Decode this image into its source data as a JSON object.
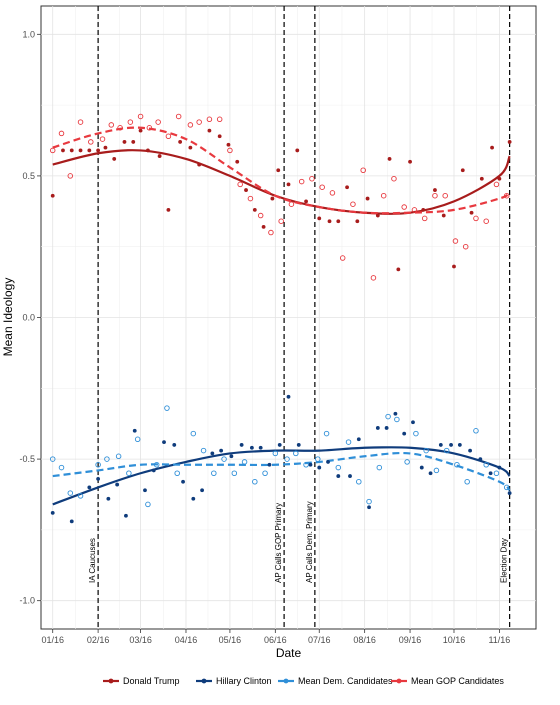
{
  "chart_data": {
    "type": "scatter",
    "xlabel": "Date",
    "ylabel": "Mean Ideology",
    "xlim": [
      "2015-12-24",
      "2016-11-26"
    ],
    "ylim": [
      -1.1,
      1.1
    ],
    "grid": true,
    "legend_position": "bottom",
    "x_ticks": [
      {
        "date": "2016-01-01",
        "label": "01/16"
      },
      {
        "date": "2016-02-01",
        "label": "02/16"
      },
      {
        "date": "2016-03-01",
        "label": "03/16"
      },
      {
        "date": "2016-04-01",
        "label": "04/16"
      },
      {
        "date": "2016-05-01",
        "label": "05/16"
      },
      {
        "date": "2016-06-01",
        "label": "06/16"
      },
      {
        "date": "2016-07-01",
        "label": "07/16"
      },
      {
        "date": "2016-08-01",
        "label": "08/16"
      },
      {
        "date": "2016-09-01",
        "label": "09/16"
      },
      {
        "date": "2016-10-01",
        "label": "10/16"
      },
      {
        "date": "2016-11-01",
        "label": "11/16"
      }
    ],
    "y_ticks": [
      {
        "value": 1.0,
        "label": "1.0"
      },
      {
        "value": 0.5,
        "label": "0.5"
      },
      {
        "value": 0.0,
        "label": "0.0"
      },
      {
        "value": -0.5,
        "label": "-0.5"
      },
      {
        "value": -1.0,
        "label": "-1.0"
      }
    ],
    "events": [
      {
        "date": "2016-02-01",
        "label": "IA Caucuses"
      },
      {
        "date": "2016-06-07",
        "label": "AP Calls GOP Primary"
      },
      {
        "date": "2016-06-28",
        "label": "AP Calls Dem. Primary"
      },
      {
        "date": "2016-11-08",
        "label": "Election Day"
      }
    ],
    "series": [
      {
        "name": "Donald Trump",
        "color": "#a81c1c",
        "marker": "filled",
        "line_style": "solid",
        "points": [
          [
            "2016-01-01",
            0.43
          ],
          [
            "2016-01-08",
            0.59
          ],
          [
            "2016-01-14",
            0.59
          ],
          [
            "2016-01-20",
            0.59
          ],
          [
            "2016-01-26",
            0.59
          ],
          [
            "2016-02-01",
            0.59
          ],
          [
            "2016-02-06",
            0.6
          ],
          [
            "2016-02-12",
            0.56
          ],
          [
            "2016-02-19",
            0.62
          ],
          [
            "2016-02-25",
            0.62
          ],
          [
            "2016-03-01",
            0.66
          ],
          [
            "2016-03-06",
            0.59
          ],
          [
            "2016-03-14",
            0.57
          ],
          [
            "2016-03-20",
            0.38
          ],
          [
            "2016-03-28",
            0.62
          ],
          [
            "2016-04-04",
            0.6
          ],
          [
            "2016-04-10",
            0.54
          ],
          [
            "2016-04-17",
            0.66
          ],
          [
            "2016-04-24",
            0.64
          ],
          [
            "2016-04-30",
            0.61
          ],
          [
            "2016-05-06",
            0.55
          ],
          [
            "2016-05-12",
            0.45
          ],
          [
            "2016-05-18",
            0.38
          ],
          [
            "2016-05-24",
            0.32
          ],
          [
            "2016-05-30",
            0.42
          ],
          [
            "2016-06-03",
            0.52
          ],
          [
            "2016-06-10",
            0.47
          ],
          [
            "2016-06-16",
            0.59
          ],
          [
            "2016-06-22",
            0.41
          ],
          [
            "2016-07-01",
            0.35
          ],
          [
            "2016-07-08",
            0.34
          ],
          [
            "2016-07-14",
            0.34
          ],
          [
            "2016-07-20",
            0.46
          ],
          [
            "2016-07-27",
            0.34
          ],
          [
            "2016-08-03",
            0.42
          ],
          [
            "2016-08-10",
            0.36
          ],
          [
            "2016-08-18",
            0.56
          ],
          [
            "2016-08-24",
            0.17
          ],
          [
            "2016-09-01",
            0.55
          ],
          [
            "2016-09-10",
            0.38
          ],
          [
            "2016-09-18",
            0.45
          ],
          [
            "2016-09-24",
            0.36
          ],
          [
            "2016-10-01",
            0.18
          ],
          [
            "2016-10-07",
            0.52
          ],
          [
            "2016-10-13",
            0.37
          ],
          [
            "2016-10-20",
            0.49
          ],
          [
            "2016-10-27",
            0.6
          ],
          [
            "2016-11-01",
            0.49
          ],
          [
            "2016-11-08",
            0.62
          ]
        ],
        "trend": [
          [
            "2016-01-01",
            0.54
          ],
          [
            "2016-02-01",
            0.58
          ],
          [
            "2016-03-01",
            0.59
          ],
          [
            "2016-04-01",
            0.56
          ],
          [
            "2016-05-01",
            0.5
          ],
          [
            "2016-06-01",
            0.43
          ],
          [
            "2016-07-01",
            0.39
          ],
          [
            "2016-08-01",
            0.37
          ],
          [
            "2016-09-01",
            0.37
          ],
          [
            "2016-10-01",
            0.41
          ],
          [
            "2016-11-01",
            0.5
          ],
          [
            "2016-11-08",
            0.57
          ]
        ]
      },
      {
        "name": "Hillary Clinton",
        "color": "#0f3c7c",
        "marker": "filled",
        "line_style": "solid",
        "points": [
          [
            "2016-01-01",
            -0.69
          ],
          [
            "2016-01-14",
            -0.72
          ],
          [
            "2016-01-26",
            -0.6
          ],
          [
            "2016-02-01",
            -0.57
          ],
          [
            "2016-02-08",
            -0.64
          ],
          [
            "2016-02-14",
            -0.59
          ],
          [
            "2016-02-20",
            -0.7
          ],
          [
            "2016-02-26",
            -0.4
          ],
          [
            "2016-03-04",
            -0.61
          ],
          [
            "2016-03-10",
            -0.54
          ],
          [
            "2016-03-17",
            -0.44
          ],
          [
            "2016-03-24",
            -0.45
          ],
          [
            "2016-03-30",
            -0.58
          ],
          [
            "2016-04-06",
            -0.64
          ],
          [
            "2016-04-12",
            -0.61
          ],
          [
            "2016-04-19",
            -0.48
          ],
          [
            "2016-04-25",
            -0.47
          ],
          [
            "2016-05-02",
            -0.49
          ],
          [
            "2016-05-09",
            -0.45
          ],
          [
            "2016-05-16",
            -0.46
          ],
          [
            "2016-05-22",
            -0.46
          ],
          [
            "2016-05-28",
            -0.52
          ],
          [
            "2016-06-04",
            -0.45
          ],
          [
            "2016-06-10",
            -0.28
          ],
          [
            "2016-06-17",
            -0.45
          ],
          [
            "2016-06-25",
            -0.52
          ],
          [
            "2016-07-01",
            -0.53
          ],
          [
            "2016-07-07",
            -0.51
          ],
          [
            "2016-07-14",
            -0.56
          ],
          [
            "2016-07-22",
            -0.56
          ],
          [
            "2016-07-28",
            -0.43
          ],
          [
            "2016-08-04",
            -0.67
          ],
          [
            "2016-08-10",
            -0.39
          ],
          [
            "2016-08-16",
            -0.39
          ],
          [
            "2016-08-22",
            -0.34
          ],
          [
            "2016-08-28",
            -0.41
          ],
          [
            "2016-09-03",
            -0.37
          ],
          [
            "2016-09-09",
            -0.53
          ],
          [
            "2016-09-15",
            -0.55
          ],
          [
            "2016-09-22",
            -0.45
          ],
          [
            "2016-09-29",
            -0.45
          ],
          [
            "2016-10-05",
            -0.45
          ],
          [
            "2016-10-12",
            -0.47
          ],
          [
            "2016-10-19",
            -0.5
          ],
          [
            "2016-10-26",
            -0.55
          ],
          [
            "2016-11-01",
            -0.53
          ],
          [
            "2016-11-08",
            -0.62
          ]
        ],
        "trend": [
          [
            "2016-01-01",
            -0.66
          ],
          [
            "2016-02-01",
            -0.6
          ],
          [
            "2016-03-01",
            -0.55
          ],
          [
            "2016-04-01",
            -0.51
          ],
          [
            "2016-05-01",
            -0.48
          ],
          [
            "2016-06-01",
            -0.47
          ],
          [
            "2016-07-01",
            -0.47
          ],
          [
            "2016-08-01",
            -0.46
          ],
          [
            "2016-09-01",
            -0.46
          ],
          [
            "2016-10-01",
            -0.48
          ],
          [
            "2016-11-01",
            -0.53
          ],
          [
            "2016-11-08",
            -0.56
          ]
        ]
      },
      {
        "name": "Mean Dem. Candidates",
        "color": "#2f8fd8",
        "marker": "open",
        "line_style": "dashed",
        "points": [
          [
            "2016-01-01",
            -0.5
          ],
          [
            "2016-01-07",
            -0.53
          ],
          [
            "2016-01-13",
            -0.62
          ],
          [
            "2016-01-20",
            -0.63
          ],
          [
            "2016-02-01",
            -0.52
          ],
          [
            "2016-02-07",
            -0.5
          ],
          [
            "2016-02-15",
            -0.49
          ],
          [
            "2016-02-22",
            -0.55
          ],
          [
            "2016-02-28",
            -0.43
          ],
          [
            "2016-03-06",
            -0.66
          ],
          [
            "2016-03-12",
            -0.52
          ],
          [
            "2016-03-19",
            -0.32
          ],
          [
            "2016-03-26",
            -0.55
          ],
          [
            "2016-04-06",
            -0.41
          ],
          [
            "2016-04-13",
            -0.47
          ],
          [
            "2016-04-20",
            -0.55
          ],
          [
            "2016-04-27",
            -0.5
          ],
          [
            "2016-05-04",
            -0.55
          ],
          [
            "2016-05-11",
            -0.51
          ],
          [
            "2016-05-18",
            -0.58
          ],
          [
            "2016-05-25",
            -0.55
          ],
          [
            "2016-06-01",
            -0.48
          ],
          [
            "2016-06-09",
            -0.5
          ],
          [
            "2016-06-15",
            -0.48
          ],
          [
            "2016-06-22",
            -0.52
          ],
          [
            "2016-06-30",
            -0.5
          ],
          [
            "2016-07-06",
            -0.41
          ],
          [
            "2016-07-14",
            -0.53
          ],
          [
            "2016-07-21",
            -0.44
          ],
          [
            "2016-07-28",
            -0.58
          ],
          [
            "2016-08-04",
            -0.65
          ],
          [
            "2016-08-11",
            -0.53
          ],
          [
            "2016-08-17",
            -0.35
          ],
          [
            "2016-08-23",
            -0.36
          ],
          [
            "2016-08-30",
            -0.51
          ],
          [
            "2016-09-05",
            -0.41
          ],
          [
            "2016-09-12",
            -0.47
          ],
          [
            "2016-09-19",
            -0.54
          ],
          [
            "2016-09-26",
            -0.47
          ],
          [
            "2016-10-03",
            -0.52
          ],
          [
            "2016-10-10",
            -0.58
          ],
          [
            "2016-10-16",
            -0.4
          ],
          [
            "2016-10-23",
            -0.52
          ],
          [
            "2016-10-30",
            -0.55
          ],
          [
            "2016-11-06",
            -0.6
          ]
        ],
        "trend": [
          [
            "2016-01-01",
            -0.56
          ],
          [
            "2016-02-01",
            -0.54
          ],
          [
            "2016-03-01",
            -0.52
          ],
          [
            "2016-04-01",
            -0.52
          ],
          [
            "2016-05-01",
            -0.52
          ],
          [
            "2016-06-01",
            -0.52
          ],
          [
            "2016-07-01",
            -0.51
          ],
          [
            "2016-08-01",
            -0.49
          ],
          [
            "2016-09-01",
            -0.48
          ],
          [
            "2016-10-01",
            -0.52
          ],
          [
            "2016-11-01",
            -0.58
          ],
          [
            "2016-11-08",
            -0.61
          ]
        ]
      },
      {
        "name": "Mean GOP Candidates",
        "color": "#e8393f",
        "marker": "open",
        "line_style": "dashed",
        "points": [
          [
            "2016-01-01",
            0.59
          ],
          [
            "2016-01-07",
            0.65
          ],
          [
            "2016-01-13",
            0.5
          ],
          [
            "2016-01-20",
            0.69
          ],
          [
            "2016-01-27",
            0.62
          ],
          [
            "2016-02-04",
            0.63
          ],
          [
            "2016-02-10",
            0.68
          ],
          [
            "2016-02-16",
            0.67
          ],
          [
            "2016-02-23",
            0.69
          ],
          [
            "2016-03-01",
            0.71
          ],
          [
            "2016-03-07",
            0.67
          ],
          [
            "2016-03-13",
            0.69
          ],
          [
            "2016-03-20",
            0.64
          ],
          [
            "2016-03-27",
            0.71
          ],
          [
            "2016-04-04",
            0.68
          ],
          [
            "2016-04-10",
            0.69
          ],
          [
            "2016-04-17",
            0.7
          ],
          [
            "2016-04-24",
            0.7
          ],
          [
            "2016-05-01",
            0.59
          ],
          [
            "2016-05-08",
            0.47
          ],
          [
            "2016-05-15",
            0.42
          ],
          [
            "2016-05-22",
            0.36
          ],
          [
            "2016-05-29",
            0.3
          ],
          [
            "2016-06-05",
            0.34
          ],
          [
            "2016-06-12",
            0.4
          ],
          [
            "2016-06-19",
            0.48
          ],
          [
            "2016-06-26",
            0.49
          ],
          [
            "2016-07-03",
            0.46
          ],
          [
            "2016-07-10",
            0.44
          ],
          [
            "2016-07-17",
            0.21
          ],
          [
            "2016-07-24",
            0.4
          ],
          [
            "2016-07-31",
            0.52
          ],
          [
            "2016-08-07",
            0.14
          ],
          [
            "2016-08-14",
            0.43
          ],
          [
            "2016-08-21",
            0.49
          ],
          [
            "2016-08-28",
            0.39
          ],
          [
            "2016-09-04",
            0.38
          ],
          [
            "2016-09-11",
            0.35
          ],
          [
            "2016-09-18",
            0.43
          ],
          [
            "2016-09-25",
            0.43
          ],
          [
            "2016-10-02",
            0.27
          ],
          [
            "2016-10-09",
            0.25
          ],
          [
            "2016-10-16",
            0.35
          ],
          [
            "2016-10-23",
            0.34
          ],
          [
            "2016-10-30",
            0.47
          ],
          [
            "2016-11-06",
            0.43
          ]
        ],
        "trend": [
          [
            "2016-01-01",
            0.6
          ],
          [
            "2016-02-01",
            0.65
          ],
          [
            "2016-03-01",
            0.67
          ],
          [
            "2016-04-01",
            0.63
          ],
          [
            "2016-05-01",
            0.53
          ],
          [
            "2016-06-01",
            0.43
          ],
          [
            "2016-07-01",
            0.39
          ],
          [
            "2016-08-01",
            0.37
          ],
          [
            "2016-09-01",
            0.37
          ],
          [
            "2016-10-01",
            0.38
          ],
          [
            "2016-11-01",
            0.42
          ],
          [
            "2016-11-08",
            0.44
          ]
        ]
      }
    ]
  }
}
